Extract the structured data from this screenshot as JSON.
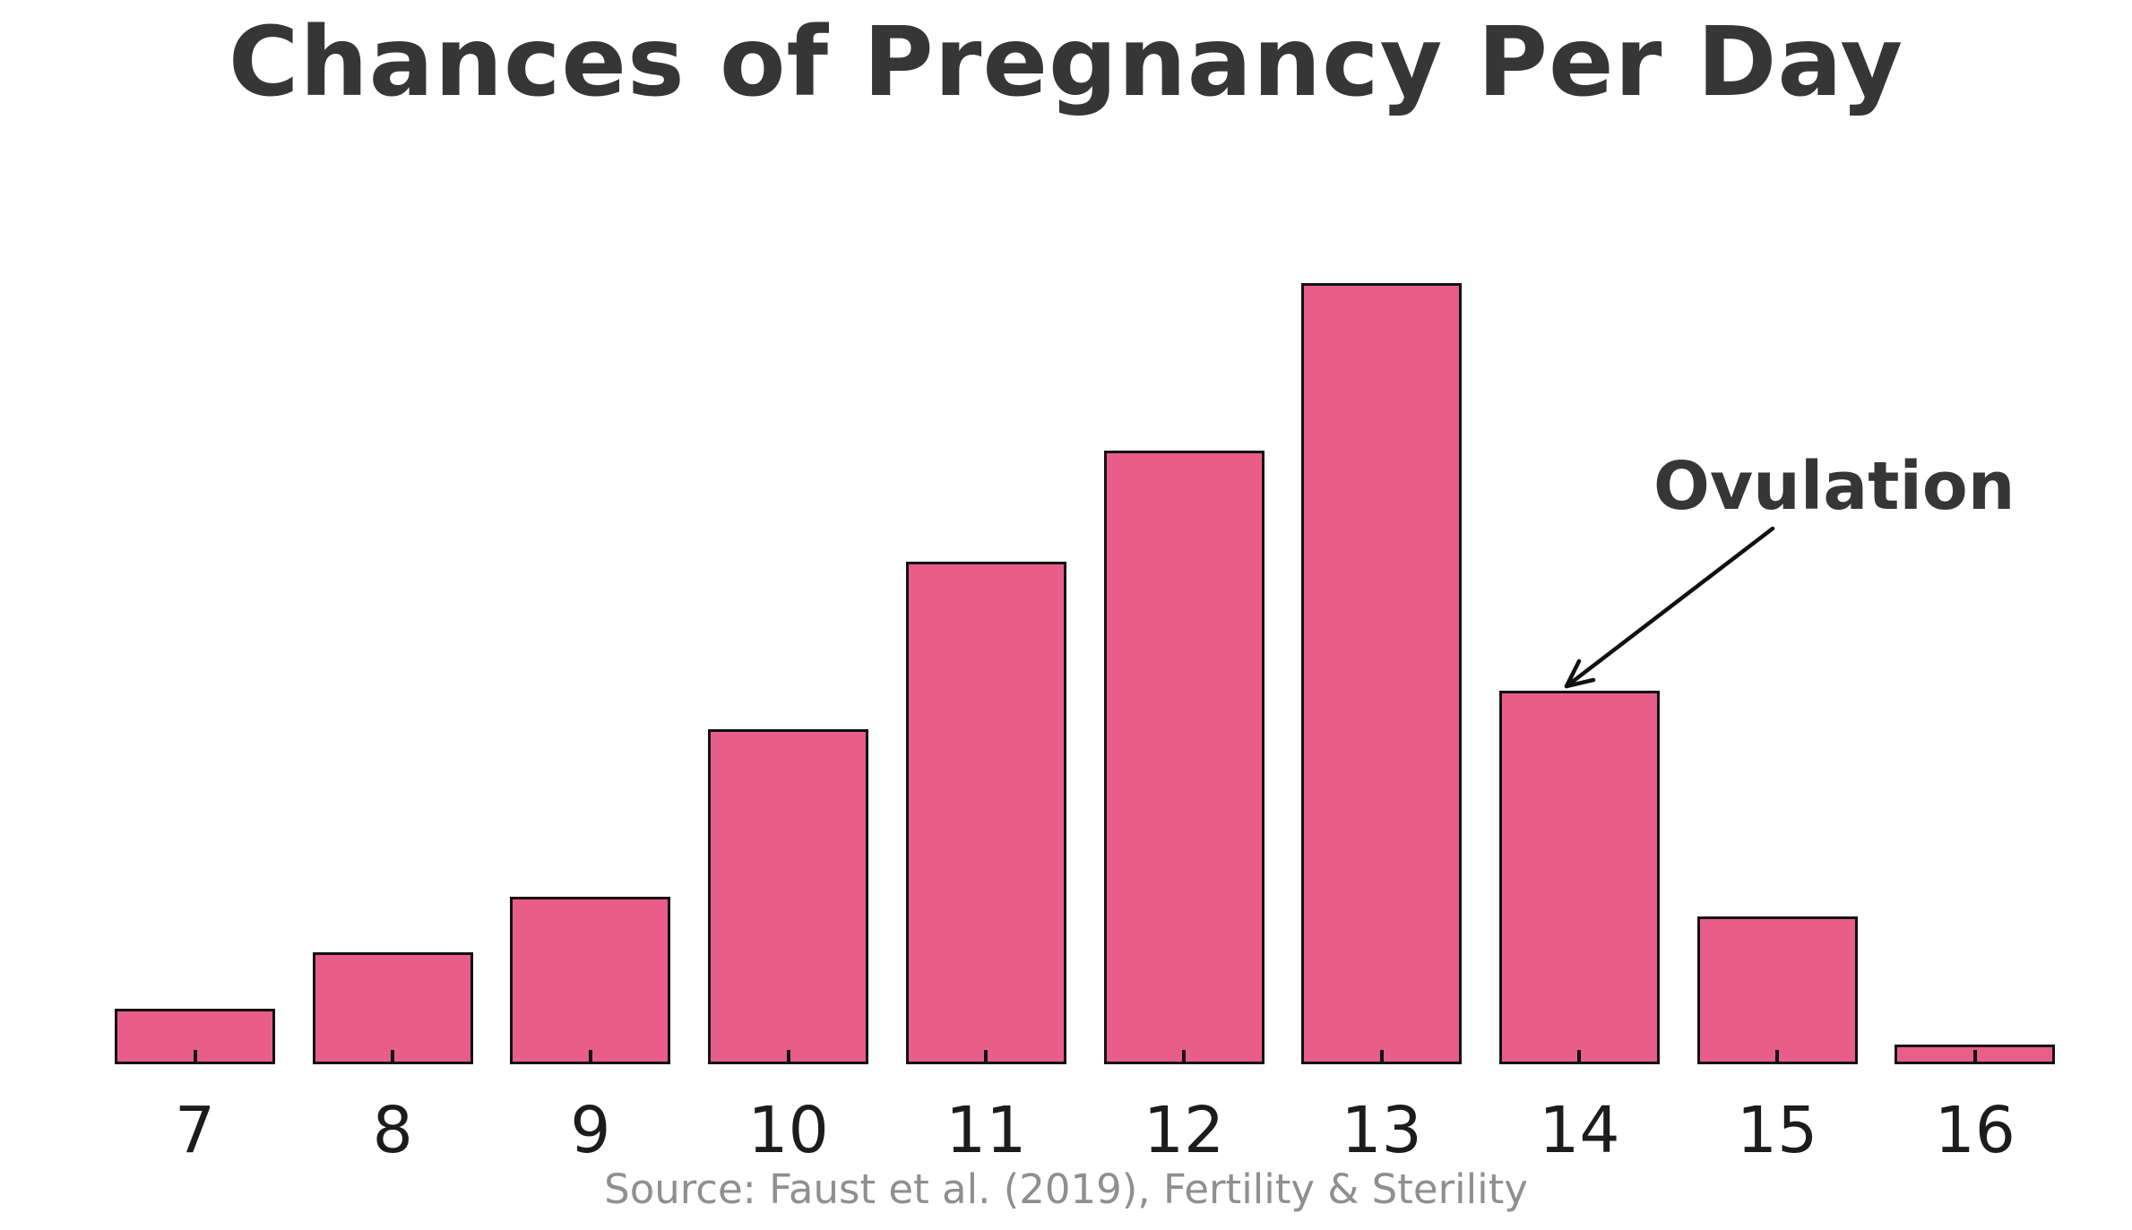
{
  "title": "Chances of Pregnancy Per Day",
  "annotation": {
    "label": "Ovulation",
    "target_category": "14"
  },
  "source": "Source: Faust et al. (2019), Fertility & Sterility",
  "colors": {
    "bar_fill": "#e85d8a",
    "bar_edge": "#111111",
    "title_text": "#363636",
    "tick_label_text": "#1c1c1c",
    "annotation_text": "#363636",
    "arrow": "#111111",
    "source_text": "#8f8f8f",
    "background": "#ffffff"
  },
  "chart_data": {
    "type": "bar",
    "title": "Chances of Pregnancy Per Day",
    "categories": [
      "7",
      "8",
      "9",
      "10",
      "11",
      "12",
      "13",
      "14",
      "15",
      "16"
    ],
    "values": [
      2,
      4,
      6,
      12,
      18,
      22,
      28,
      13.4,
      5.3,
      0.7
    ],
    "value_note": "relative chance estimated from bar heights; no y-axis shown",
    "max_value": 28,
    "xlabel": "",
    "ylabel": "",
    "y_axis_visible": false,
    "grid": false,
    "legend": false,
    "annotations": [
      {
        "text": "Ovulation",
        "target_category": "14",
        "arrow": true
      }
    ],
    "caption": "Source: Faust et al. (2019), Fertility & Sterility"
  }
}
